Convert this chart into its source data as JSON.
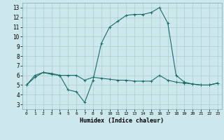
{
  "xlabel": "Humidex (Indice chaleur)",
  "bg_color": "#cce8ec",
  "grid_color": "#aacccc",
  "line_color": "#1a6b6b",
  "xlim": [
    -0.5,
    23.5
  ],
  "ylim": [
    2.5,
    13.5
  ],
  "xticks": [
    0,
    1,
    2,
    3,
    4,
    5,
    6,
    7,
    8,
    9,
    10,
    11,
    12,
    13,
    14,
    15,
    16,
    17,
    18,
    19,
    20,
    21,
    22,
    23
  ],
  "yticks": [
    3,
    4,
    5,
    6,
    7,
    8,
    9,
    10,
    11,
    12,
    13
  ],
  "curve1_x": [
    0,
    1,
    2,
    3,
    4,
    5,
    6,
    7,
    8,
    9,
    10,
    11,
    12,
    13,
    14,
    15,
    16,
    17,
    18,
    19,
    20,
    21,
    22,
    23
  ],
  "curve1_y": [
    5.0,
    6.0,
    6.3,
    6.2,
    6.0,
    4.5,
    4.3,
    3.2,
    5.5,
    9.3,
    11.0,
    11.6,
    12.2,
    12.3,
    12.3,
    12.5,
    13.0,
    11.4,
    6.0,
    5.3,
    5.1,
    5.0,
    5.0,
    5.2
  ],
  "curve2_x": [
    0,
    1,
    2,
    3,
    4,
    5,
    6,
    7,
    8,
    9,
    10,
    11,
    12,
    13,
    14,
    15,
    16,
    17,
    18,
    19,
    20,
    21,
    22,
    23
  ],
  "curve2_y": [
    5.0,
    5.8,
    6.3,
    6.1,
    6.0,
    6.0,
    6.0,
    5.5,
    5.8,
    5.7,
    5.6,
    5.5,
    5.5,
    5.4,
    5.4,
    5.4,
    6.0,
    5.5,
    5.3,
    5.2,
    5.1,
    5.0,
    5.0,
    5.2
  ],
  "marker": "+",
  "markersize": 3,
  "linewidth": 0.8
}
